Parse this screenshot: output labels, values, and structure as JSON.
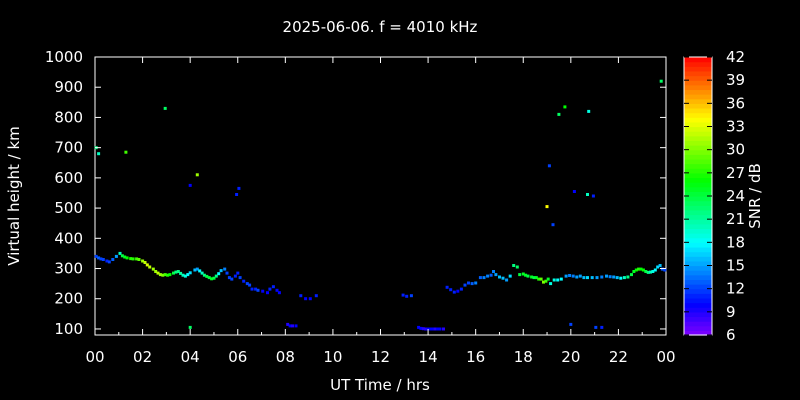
{
  "chart_data": {
    "type": "scatter",
    "title": "2025-06-06. f = 4010 kHz",
    "xlabel": "UT Time / hrs",
    "ylabel": "Virtual height / km",
    "xlim": [
      0,
      24
    ],
    "ylim": [
      80,
      1000
    ],
    "x_tick_labels": [
      "00",
      "02",
      "04",
      "06",
      "08",
      "10",
      "12",
      "14",
      "16",
      "18",
      "20",
      "22",
      "00"
    ],
    "y_ticks": [
      100,
      200,
      300,
      400,
      500,
      600,
      700,
      800,
      900,
      1000
    ],
    "grid": false,
    "colorbar": {
      "label": "SNR / dB",
      "range": [
        6,
        42
      ],
      "ticks": [
        6,
        9,
        12,
        15,
        18,
        21,
        24,
        27,
        30,
        33,
        36,
        39,
        42
      ],
      "colormap": "rainbow"
    },
    "series": [
      {
        "point_format": "[time_hours, virtual_height_km, snr_db]",
        "points": [
          [
            0.05,
            340,
            12
          ],
          [
            0.15,
            335,
            13
          ],
          [
            0.25,
            332,
            12
          ],
          [
            0.35,
            330,
            12
          ],
          [
            0.5,
            325,
            11
          ],
          [
            0.6,
            322,
            12
          ],
          [
            0.75,
            330,
            13
          ],
          [
            0.9,
            340,
            15
          ],
          [
            1.05,
            350,
            20
          ],
          [
            1.15,
            342,
            24
          ],
          [
            1.25,
            338,
            25
          ],
          [
            1.35,
            335,
            26
          ],
          [
            1.5,
            333,
            27
          ],
          [
            1.6,
            332,
            27
          ],
          [
            1.75,
            332,
            28
          ],
          [
            1.85,
            330,
            29
          ],
          [
            2.0,
            325,
            31
          ],
          [
            2.1,
            320,
            32
          ],
          [
            2.2,
            312,
            33
          ],
          [
            2.3,
            305,
            32
          ],
          [
            2.45,
            298,
            31
          ],
          [
            2.55,
            290,
            31
          ],
          [
            2.65,
            285,
            32
          ],
          [
            2.75,
            280,
            31
          ],
          [
            2.85,
            278,
            30
          ],
          [
            2.95,
            280,
            28
          ],
          [
            3.05,
            278,
            27
          ],
          [
            3.15,
            280,
            26
          ],
          [
            3.3,
            285,
            24
          ],
          [
            3.4,
            288,
            22
          ],
          [
            3.5,
            290,
            22
          ],
          [
            3.6,
            284,
            21
          ],
          [
            3.7,
            278,
            20
          ],
          [
            3.8,
            275,
            19
          ],
          [
            3.9,
            280,
            18
          ],
          [
            4.0,
            286,
            17
          ],
          [
            4.2,
            295,
            16
          ],
          [
            4.3,
            298,
            15
          ],
          [
            4.4,
            292,
            18
          ],
          [
            4.5,
            285,
            20
          ],
          [
            4.6,
            278,
            22
          ],
          [
            4.7,
            274,
            24
          ],
          [
            4.8,
            270,
            24
          ],
          [
            4.9,
            266,
            25
          ],
          [
            5.0,
            268,
            24
          ],
          [
            5.1,
            275,
            22
          ],
          [
            5.2,
            283,
            18
          ],
          [
            5.3,
            293,
            16
          ],
          [
            5.45,
            298,
            14
          ],
          [
            5.55,
            285,
            12
          ],
          [
            5.65,
            270,
            12
          ],
          [
            5.75,
            265,
            12
          ],
          [
            5.9,
            275,
            11
          ],
          [
            6.0,
            285,
            11
          ],
          [
            6.1,
            270,
            12
          ],
          [
            6.25,
            258,
            11
          ],
          [
            6.4,
            250,
            12
          ],
          [
            6.5,
            245,
            12
          ],
          [
            6.6,
            232,
            11
          ],
          [
            6.75,
            232,
            11
          ],
          [
            6.85,
            228,
            12
          ],
          [
            7.05,
            225,
            10
          ],
          [
            7.25,
            220,
            10
          ],
          [
            7.35,
            232,
            11
          ],
          [
            7.5,
            240,
            11
          ],
          [
            7.65,
            228,
            10
          ],
          [
            7.75,
            220,
            10
          ],
          [
            8.1,
            115,
            9
          ],
          [
            8.2,
            110,
            10
          ],
          [
            8.3,
            110,
            9
          ],
          [
            8.45,
            110,
            10
          ],
          [
            8.65,
            210,
            11
          ],
          [
            8.85,
            200,
            10
          ],
          [
            9.05,
            200,
            10
          ],
          [
            9.3,
            210,
            11
          ],
          [
            12.95,
            212,
            11
          ],
          [
            13.1,
            208,
            11
          ],
          [
            13.3,
            210,
            12
          ],
          [
            13.6,
            105,
            10
          ],
          [
            13.7,
            102,
            10
          ],
          [
            13.8,
            101,
            9
          ],
          [
            13.9,
            100,
            9
          ],
          [
            14.0,
            100,
            10
          ],
          [
            14.1,
            100,
            10
          ],
          [
            14.2,
            100,
            10
          ],
          [
            14.3,
            100,
            9
          ],
          [
            14.4,
            100,
            10
          ],
          [
            14.5,
            100,
            10
          ],
          [
            14.65,
            100,
            9
          ],
          [
            14.8,
            238,
            11
          ],
          [
            14.95,
            230,
            11
          ],
          [
            15.1,
            222,
            11
          ],
          [
            15.25,
            225,
            10
          ],
          [
            15.4,
            232,
            11
          ],
          [
            15.55,
            245,
            12
          ],
          [
            15.7,
            252,
            12
          ],
          [
            15.85,
            250,
            13
          ],
          [
            16.0,
            252,
            14
          ],
          [
            16.2,
            270,
            13
          ],
          [
            16.35,
            270,
            14
          ],
          [
            16.5,
            275,
            14
          ],
          [
            16.65,
            278,
            13
          ],
          [
            16.75,
            290,
            14
          ],
          [
            16.85,
            280,
            15
          ],
          [
            17.0,
            272,
            16
          ],
          [
            17.15,
            268,
            16
          ],
          [
            17.3,
            262,
            15
          ],
          [
            17.45,
            275,
            17
          ],
          [
            17.6,
            310,
            22
          ],
          [
            17.75,
            305,
            23
          ],
          [
            17.85,
            280,
            24
          ],
          [
            18.0,
            282,
            25
          ],
          [
            18.1,
            278,
            25
          ],
          [
            18.2,
            275,
            24
          ],
          [
            18.35,
            272,
            25
          ],
          [
            18.45,
            270,
            24
          ],
          [
            18.55,
            270,
            25
          ],
          [
            18.65,
            265,
            27
          ],
          [
            18.75,
            265,
            29
          ],
          [
            18.85,
            255,
            30
          ],
          [
            18.95,
            258,
            28
          ],
          [
            19.05,
            265,
            25
          ],
          [
            19.15,
            250,
            19
          ],
          [
            19.3,
            262,
            19
          ],
          [
            19.45,
            262,
            18
          ],
          [
            19.6,
            265,
            18
          ],
          [
            19.8,
            275,
            15
          ],
          [
            19.95,
            277,
            14
          ],
          [
            20.1,
            275,
            14
          ],
          [
            20.25,
            272,
            15
          ],
          [
            20.4,
            275,
            15
          ],
          [
            20.55,
            270,
            16
          ],
          [
            20.7,
            270,
            17
          ],
          [
            20.9,
            270,
            16
          ],
          [
            21.1,
            270,
            15
          ],
          [
            21.3,
            272,
            14
          ],
          [
            21.5,
            275,
            15
          ],
          [
            21.65,
            273,
            14
          ],
          [
            21.8,
            272,
            15
          ],
          [
            21.95,
            270,
            16
          ],
          [
            22.1,
            268,
            18
          ],
          [
            22.25,
            270,
            20
          ],
          [
            22.4,
            272,
            22
          ],
          [
            22.55,
            280,
            24
          ],
          [
            22.65,
            290,
            25
          ],
          [
            22.75,
            295,
            26
          ],
          [
            22.85,
            298,
            27
          ],
          [
            22.95,
            298,
            26
          ],
          [
            23.05,
            295,
            26
          ],
          [
            23.15,
            290,
            24
          ],
          [
            23.25,
            287,
            22
          ],
          [
            23.35,
            288,
            20
          ],
          [
            23.45,
            290,
            19
          ],
          [
            23.55,
            295,
            18
          ],
          [
            23.65,
            305,
            17
          ],
          [
            23.75,
            310,
            16
          ],
          [
            23.85,
            298,
            13
          ],
          [
            23.95,
            295,
            12
          ],
          [
            0.15,
            680,
            20
          ],
          [
            0.05,
            700,
            22
          ],
          [
            1.3,
            685,
            28
          ],
          [
            2.95,
            830,
            23
          ],
          [
            4.0,
            575,
            10
          ],
          [
            4.3,
            610,
            31
          ],
          [
            5.95,
            545,
            11
          ],
          [
            6.05,
            565,
            11
          ],
          [
            4.0,
            105,
            23
          ],
          [
            19.0,
            505,
            34
          ],
          [
            19.1,
            640,
            12
          ],
          [
            19.25,
            445,
            12
          ],
          [
            19.5,
            810,
            23
          ],
          [
            19.75,
            835,
            26
          ],
          [
            20.15,
            555,
            10
          ],
          [
            20.7,
            545,
            20
          ],
          [
            20.75,
            820,
            19
          ],
          [
            20.95,
            540,
            11
          ],
          [
            20.0,
            115,
            12
          ],
          [
            21.05,
            105,
            12
          ],
          [
            21.3,
            105,
            11
          ],
          [
            23.8,
            920,
            23
          ]
        ]
      }
    ]
  }
}
